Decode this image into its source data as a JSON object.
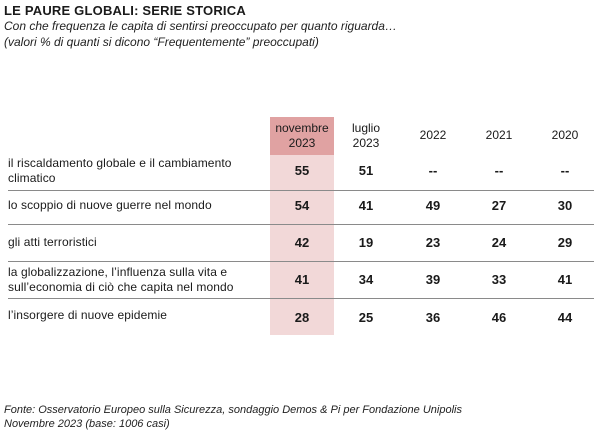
{
  "title": "LE PAURE GLOBALI: SERIE STORICA",
  "subtitle_lines": [
    "Con che frequenza le capita di sentirsi preoccupato per quanto riguarda…",
    "(valori % di quanti si dicono “Frequentemente” preoccupati)"
  ],
  "columns": [
    {
      "line1": "novembre",
      "line2": "2023"
    },
    {
      "line1": "luglio",
      "line2": "2023"
    },
    {
      "line1": "2022",
      "line2": ""
    },
    {
      "line1": "2021",
      "line2": ""
    },
    {
      "line1": "2020",
      "line2": ""
    }
  ],
  "highlight_color": "#e0a2a2",
  "highlight_bg": "#f2d8d8",
  "source_lines": [
    "Fonte: Osservatorio Europeo sulla Sicurezza, sondaggio Demos & Pi per Fondazione Unipolis",
    "Novembre 2023  (base: 1006 casi)"
  ],
  "chart_data": {
    "type": "table",
    "title": "LE PAURE GLOBALI: SERIE STORICA",
    "columns": [
      "novembre 2023",
      "luglio 2023",
      "2022",
      "2021",
      "2020"
    ],
    "rows": [
      {
        "label_lines": [
          "il riscaldamento globale e il cambiamento",
          "climatico"
        ],
        "values": [
          "55",
          "51",
          "--",
          "--",
          "--"
        ]
      },
      {
        "label_lines": [
          "lo scoppio di nuove guerre nel mondo"
        ],
        "values": [
          "54",
          "41",
          "49",
          "27",
          "30"
        ]
      },
      {
        "label_lines": [
          "gli atti terroristici"
        ],
        "values": [
          "42",
          "19",
          "23",
          "24",
          "29"
        ]
      },
      {
        "label_lines": [
          "la globalizzazione, l’influenza sulla vita e",
          "sull’economia di ciò che capita nel mondo"
        ],
        "values": [
          "41",
          "34",
          "39",
          "33",
          "41"
        ]
      },
      {
        "label_lines": [
          "l’insorgere di nuove epidemie"
        ],
        "values": [
          "28",
          "25",
          "36",
          "46",
          "44"
        ]
      }
    ]
  }
}
